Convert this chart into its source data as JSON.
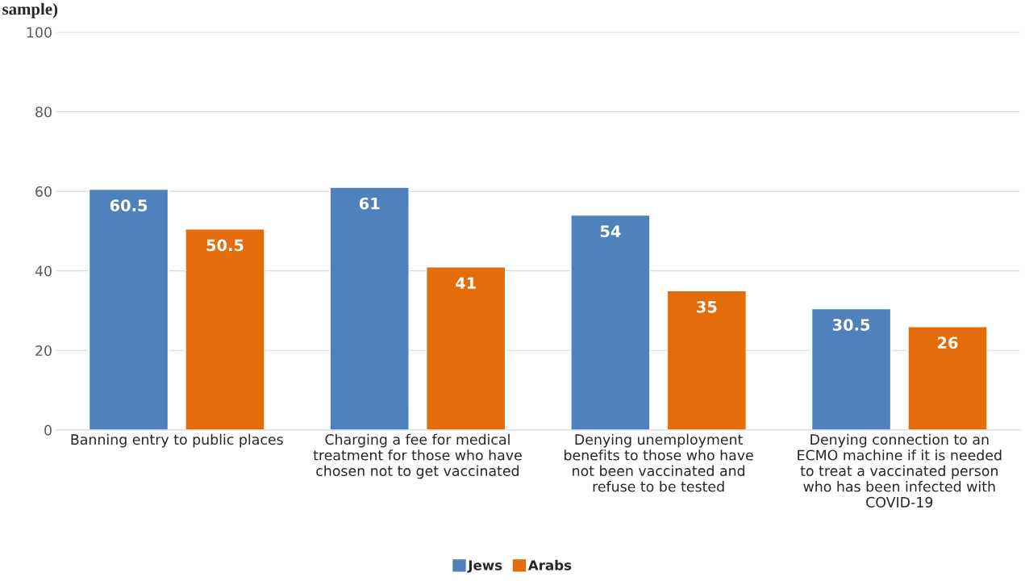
{
  "chart_data": {
    "type": "bar",
    "title": "sample)",
    "categories": [
      "Banning entry to public places",
      "Charging a fee for medical\ntreatment for those who have\nchosen not to get vaccinated",
      "Denying unemployment\nbenefits to those who have\nnot been vaccinated and\nrefuse to be tested",
      "Denying connection to an\nECMO machine if it is needed\nto treat a vaccinated person\nwho has been infected with\nCOVID-19"
    ],
    "series": [
      {
        "name": "Jews",
        "color": "#4f81bd",
        "values": [
          60.5,
          61,
          54,
          30.5
        ]
      },
      {
        "name": "Arabs",
        "color": "#e46c0a",
        "values": [
          50.5,
          41,
          35,
          26
        ]
      }
    ],
    "ylim": [
      0,
      100
    ],
    "yticks": [
      0,
      20,
      40,
      60,
      80,
      100
    ],
    "grid": "y",
    "legend": "bottom",
    "data_labels": true
  }
}
